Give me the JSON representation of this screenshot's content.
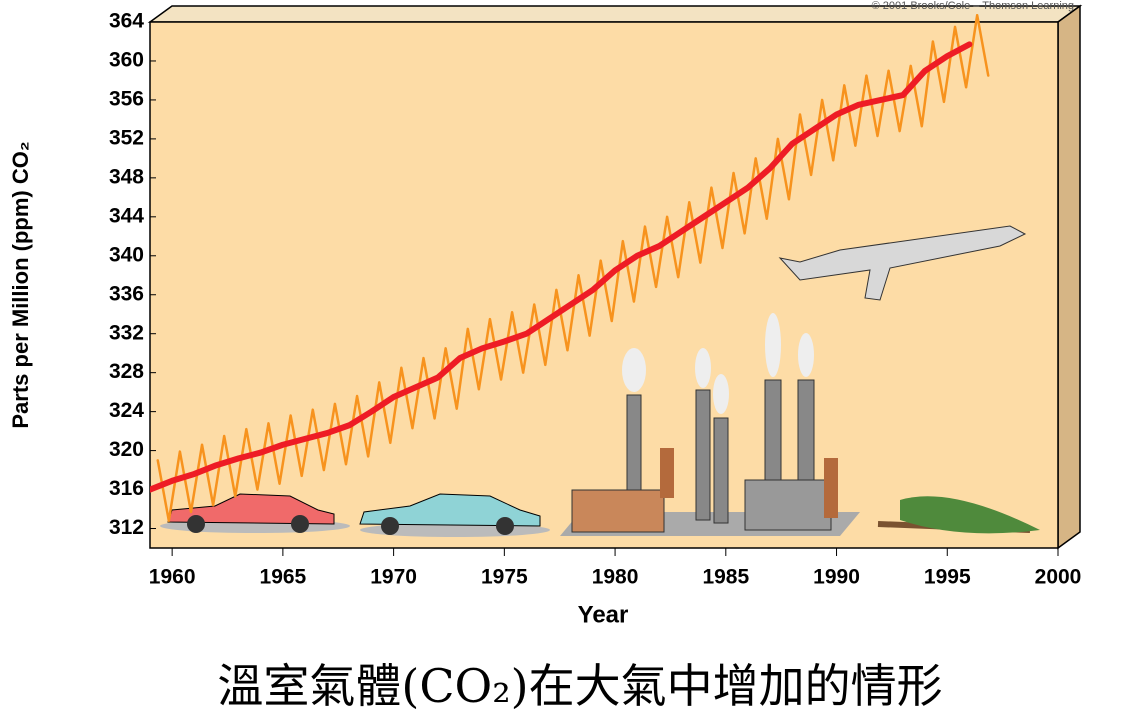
{
  "chart_data": {
    "type": "line",
    "title": "溫室氣體(CO₂)在大氣中增加的情形",
    "credit": "© 2001 Brooks/Cole – Thomson Learning",
    "xlabel": "Year",
    "ylabel": "Parts per Million (ppm) CO₂",
    "xlim": [
      1959,
      2000
    ],
    "xticks": [
      1960,
      1965,
      1970,
      1975,
      1980,
      1985,
      1990,
      1995,
      2000
    ],
    "ylim": [
      310,
      364
    ],
    "yticks": [
      312,
      316,
      320,
      324,
      328,
      332,
      336,
      340,
      344,
      348,
      352,
      356,
      360,
      364
    ],
    "series": [
      {
        "color": "#f7931e",
        "width": 2.5,
        "x": [
          1959.35,
          1959.85,
          1960.35,
          1960.85,
          1961.35,
          1961.85,
          1962.35,
          1962.85,
          1963.35,
          1963.85,
          1964.35,
          1964.85,
          1965.35,
          1965.85,
          1966.35,
          1966.85,
          1967.35,
          1967.85,
          1968.35,
          1968.85,
          1969.35,
          1969.85,
          1970.35,
          1970.85,
          1971.35,
          1971.85,
          1972.35,
          1972.85,
          1973.35,
          1973.85,
          1974.35,
          1974.85,
          1975.35,
          1975.85,
          1976.35,
          1976.85,
          1977.35,
          1977.85,
          1978.35,
          1978.85,
          1979.35,
          1979.85,
          1980.35,
          1980.85,
          1981.35,
          1981.85,
          1982.35,
          1982.85,
          1983.35,
          1983.85,
          1984.35,
          1984.85,
          1985.35,
          1985.85,
          1986.35,
          1986.85,
          1987.35,
          1987.85,
          1988.35,
          1988.85,
          1989.35,
          1989.85,
          1990.35,
          1990.85,
          1991.35,
          1991.85,
          1992.35,
          1992.85,
          1993.35,
          1993.85,
          1994.35,
          1994.85,
          1995.35,
          1995.85,
          1996.35,
          1996.85
        ],
        "values": [
          319,
          312.8,
          319.9,
          313.7,
          320.6,
          314.4,
          321.5,
          315.3,
          322.2,
          316,
          322.8,
          316.6,
          323.6,
          317.4,
          324.2,
          318,
          324.8,
          318.6,
          325.6,
          319.4,
          327,
          320.8,
          328.5,
          322.3,
          329.5,
          323.3,
          330.5,
          324.3,
          332.5,
          326.3,
          333.5,
          327.3,
          334.2,
          328,
          335,
          328.8,
          336.5,
          330.3,
          338,
          331.8,
          339.5,
          333.3,
          341.5,
          335.3,
          343,
          336.8,
          344,
          337.8,
          345.5,
          339.3,
          347,
          340.8,
          348.5,
          342.3,
          350,
          343.8,
          352,
          345.8,
          354.5,
          348.3,
          356,
          349.8,
          357.5,
          351.3,
          358.5,
          352.3,
          359,
          352.8,
          359.5,
          353.3,
          362,
          355.8,
          363.5,
          357.3,
          364.7,
          358.5
        ]
      },
      {
        "color": "#ee1c25",
        "width": 6,
        "x": [
          1959,
          1960,
          1961,
          1962,
          1963,
          1964,
          1965,
          1966,
          1967,
          1968,
          1969,
          1970,
          1971,
          1972,
          1973,
          1974,
          1975,
          1976,
          1977,
          1978,
          1979,
          1980,
          1981,
          1982,
          1983,
          1984,
          1985,
          1986,
          1987,
          1988,
          1989,
          1990,
          1991,
          1992,
          1993,
          1994,
          1995,
          1996
        ],
        "values": [
          316,
          316.9,
          317.6,
          318.5,
          319.2,
          319.8,
          320.6,
          321.2,
          321.8,
          322.6,
          324,
          325.5,
          326.5,
          327.5,
          329.5,
          330.5,
          331.2,
          332,
          333.5,
          335,
          336.5,
          338.5,
          340,
          341,
          342.5,
          344,
          345.5,
          347,
          349,
          351.5,
          353,
          354.5,
          355.5,
          356,
          356.5,
          359,
          360.5,
          361.7
        ]
      }
    ],
    "background": "#fddca6"
  }
}
